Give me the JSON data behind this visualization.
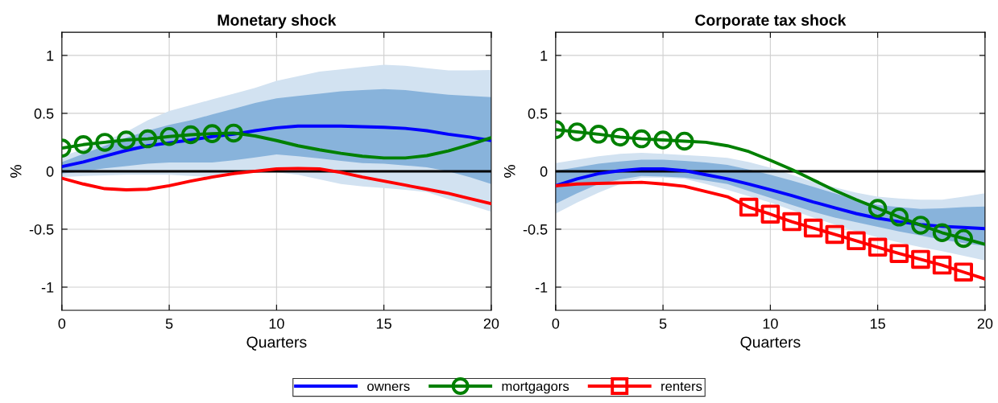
{
  "chart_data": [
    {
      "type": "line",
      "title": "Monetary shock",
      "xlabel": "Quarters",
      "ylabel": "%",
      "xlim": [
        0,
        20
      ],
      "xticks": [
        0,
        5,
        10,
        15,
        20
      ],
      "ylim": [
        -1.2,
        1.2
      ],
      "yticks": [
        -1,
        -0.5,
        0,
        0.5,
        1
      ],
      "grid": true,
      "x": [
        0,
        1,
        2,
        3,
        4,
        5,
        6,
        7,
        8,
        9,
        10,
        11,
        12,
        13,
        14,
        15,
        16,
        17,
        18,
        19,
        20
      ],
      "ref_lines": [
        {
          "axis": "y",
          "value": 0,
          "color": "#000000"
        }
      ],
      "series": [
        {
          "color": "#d2e2f1",
          "values": [
            null,
            null,
            null,
            null,
            null,
            null,
            null,
            null,
            null,
            null,
            null,
            null,
            null,
            null,
            null,
            null,
            null,
            null,
            null,
            null,
            null
          ],
          "upper": [
            0.13,
            0.19,
            0.26,
            0.34,
            0.44,
            0.52,
            0.57,
            0.62,
            0.67,
            0.72,
            0.78,
            0.82,
            0.86,
            0.88,
            0.9,
            0.92,
            0.91,
            0.89,
            0.87,
            0.87,
            0.875
          ],
          "lower": [
            -0.05,
            -0.04,
            -0.035,
            -0.03,
            -0.03,
            -0.03,
            -0.04,
            -0.05,
            -0.03,
            -0.01,
            -0.01,
            -0.03,
            -0.07,
            -0.11,
            -0.13,
            -0.145,
            -0.16,
            -0.18,
            -0.24,
            -0.29,
            -0.35
          ]
        },
        {
          "color": "#0000ff",
          "values": [
            0.04,
            0.08,
            0.13,
            0.18,
            0.22,
            0.245,
            0.27,
            0.3,
            0.32,
            0.35,
            0.375,
            0.39,
            0.39,
            0.39,
            0.385,
            0.38,
            0.37,
            0.35,
            0.32,
            0.295,
            0.265
          ],
          "upper": [
            0.08,
            0.15,
            0.22,
            0.29,
            0.35,
            0.4,
            0.44,
            0.49,
            0.54,
            0.59,
            0.63,
            0.65,
            0.67,
            0.69,
            0.7,
            0.71,
            0.7,
            0.68,
            0.66,
            0.65,
            0.64
          ],
          "lower": [
            -0.02,
            0.0,
            0.025,
            0.045,
            0.065,
            0.075,
            0.075,
            0.075,
            0.095,
            0.12,
            0.145,
            0.13,
            0.11,
            0.09,
            0.07,
            0.065,
            0.05,
            0.035,
            0.0,
            -0.05,
            -0.11
          ]
        },
        {
          "color": "#008000",
          "values": [
            0.2,
            0.23,
            0.25,
            0.27,
            0.28,
            0.3,
            0.315,
            0.325,
            0.33,
            0.305,
            0.265,
            0.22,
            0.185,
            0.155,
            0.13,
            0.115,
            0.115,
            0.135,
            0.175,
            0.23,
            0.29
          ]
        },
        {
          "type": "scatter",
          "color": "#008000",
          "marker": "circle",
          "x": [
            0,
            1,
            2,
            3,
            4,
            5,
            6,
            7,
            8
          ],
          "values": [
            0.2,
            0.23,
            0.25,
            0.27,
            0.28,
            0.3,
            0.315,
            0.325,
            0.33
          ]
        },
        {
          "color": "#ff0000",
          "values": [
            -0.06,
            -0.11,
            -0.15,
            -0.16,
            -0.155,
            -0.125,
            -0.085,
            -0.05,
            -0.02,
            0.0,
            0.02,
            0.025,
            0.02,
            -0.01,
            -0.05,
            -0.085,
            -0.12,
            -0.155,
            -0.19,
            -0.235,
            -0.28
          ]
        }
      ]
    },
    {
      "type": "line",
      "title": "Corporate tax shock",
      "xlabel": "Quarters",
      "ylabel": "%",
      "xlim": [
        0,
        20
      ],
      "xticks": [
        0,
        5,
        10,
        15,
        20
      ],
      "ylim": [
        -1.2,
        1.2
      ],
      "yticks": [
        -1,
        -0.5,
        0,
        0.5,
        1
      ],
      "grid": true,
      "legend": "bottom",
      "x": [
        0,
        1,
        2,
        3,
        4,
        5,
        6,
        7,
        8,
        9,
        10,
        11,
        12,
        13,
        14,
        15,
        16,
        17,
        18,
        19,
        20
      ],
      "ref_lines": [
        {
          "axis": "y",
          "value": 0,
          "color": "#000000"
        }
      ],
      "series": [
        {
          "color": "#d2e2f1",
          "values": [
            null,
            null,
            null,
            null,
            null,
            null,
            null,
            null,
            null,
            null,
            null,
            null,
            null,
            null,
            null,
            null,
            null,
            null,
            null,
            null,
            null
          ],
          "upper": [
            0.07,
            0.1,
            0.13,
            0.15,
            0.16,
            0.15,
            0.14,
            0.13,
            0.115,
            0.08,
            0.03,
            -0.03,
            -0.09,
            -0.14,
            -0.185,
            -0.22,
            -0.235,
            -0.245,
            -0.245,
            -0.22,
            -0.19
          ],
          "lower": [
            -0.365,
            -0.27,
            -0.185,
            -0.11,
            -0.055,
            -0.055,
            -0.065,
            -0.11,
            -0.16,
            -0.215,
            -0.27,
            -0.335,
            -0.4,
            -0.46,
            -0.52,
            -0.57,
            -0.615,
            -0.655,
            -0.69,
            -0.73,
            -0.77
          ]
        },
        {
          "name": "owners",
          "color": "#0000ff",
          "values": [
            -0.125,
            -0.065,
            -0.02,
            0.005,
            0.02,
            0.02,
            0.005,
            -0.03,
            -0.065,
            -0.11,
            -0.16,
            -0.21,
            -0.265,
            -0.315,
            -0.365,
            -0.405,
            -0.435,
            -0.46,
            -0.475,
            -0.485,
            -0.495
          ],
          "upper": [
            0.005,
            0.035,
            0.065,
            0.085,
            0.1,
            0.1,
            0.09,
            0.075,
            0.055,
            0.015,
            -0.03,
            -0.08,
            -0.135,
            -0.19,
            -0.245,
            -0.29,
            -0.31,
            -0.325,
            -0.32,
            -0.31,
            -0.305
          ],
          "lower": [
            -0.28,
            -0.19,
            -0.11,
            -0.07,
            -0.04,
            -0.045,
            -0.055,
            -0.08,
            -0.11,
            -0.17,
            -0.23,
            -0.29,
            -0.35,
            -0.4,
            -0.44,
            -0.48,
            -0.52,
            -0.555,
            -0.59,
            -0.62,
            -0.645
          ]
        },
        {
          "name": "mortgagors",
          "color": "#008000",
          "values": [
            0.36,
            0.34,
            0.32,
            0.295,
            0.28,
            0.27,
            0.26,
            0.25,
            0.22,
            0.17,
            0.095,
            0.015,
            -0.075,
            -0.165,
            -0.245,
            -0.32,
            -0.395,
            -0.465,
            -0.53,
            -0.58,
            -0.63
          ]
        },
        {
          "type": "scatter",
          "color": "#008000",
          "marker": "circle",
          "x": [
            0,
            1,
            2,
            3,
            4,
            5,
            6,
            15,
            16,
            17,
            18,
            19
          ],
          "values": [
            0.36,
            0.34,
            0.32,
            0.295,
            0.28,
            0.27,
            0.26,
            -0.32,
            -0.395,
            -0.465,
            -0.53,
            -0.58
          ]
        },
        {
          "name": "renters",
          "color": "#ff0000",
          "values": [
            -0.125,
            -0.11,
            -0.105,
            -0.1,
            -0.095,
            -0.11,
            -0.13,
            -0.175,
            -0.22,
            -0.31,
            -0.37,
            -0.435,
            -0.49,
            -0.545,
            -0.6,
            -0.655,
            -0.71,
            -0.76,
            -0.81,
            -0.87,
            -0.93
          ]
        },
        {
          "type": "scatter",
          "color": "#ff0000",
          "marker": "square",
          "x": [
            9,
            10,
            11,
            12,
            13,
            14,
            15,
            16,
            17,
            18,
            19
          ],
          "values": [
            -0.31,
            -0.37,
            -0.435,
            -0.49,
            -0.545,
            -0.6,
            -0.655,
            -0.71,
            -0.76,
            -0.81,
            -0.87
          ]
        }
      ]
    }
  ]
}
